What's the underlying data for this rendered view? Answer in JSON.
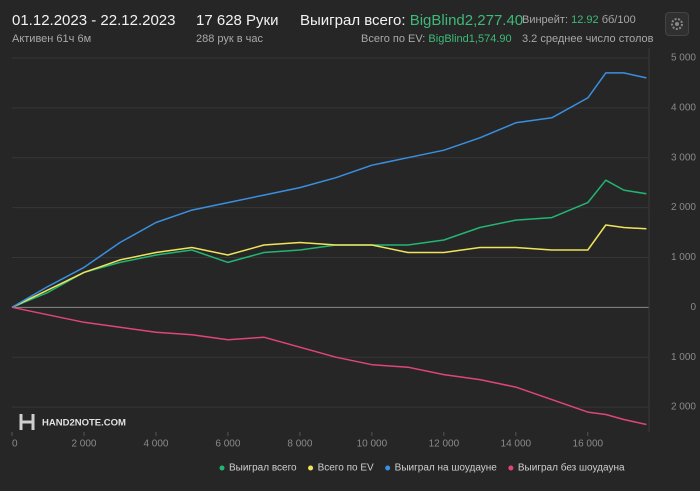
{
  "header": {
    "date_range": "01.12.2023 - 22.12.2023",
    "active": "Активен 61ч 6м",
    "hands": "17 628 Руки",
    "hands_per_hour": "288 рук в час",
    "won_label": "Выиграл всего:",
    "won_value": "BigBlind2,277.40",
    "ev_label": "Всего по EV:",
    "ev_value": "BigBlind1,574.90",
    "winrate_label": "Винрейт:",
    "winrate_value": "12.92",
    "winrate_unit": "бб/100",
    "tables": "3.2 среднее число столов"
  },
  "logo": "HAND2NOTE.COM",
  "chart_data": {
    "type": "line",
    "x": [
      0,
      1000,
      2000,
      3000,
      4000,
      5000,
      6000,
      7000,
      8000,
      9000,
      10000,
      11000,
      12000,
      13000,
      14000,
      15000,
      16000,
      16500,
      17000,
      17628
    ],
    "series": [
      {
        "name": "Выиграл всего",
        "color": "#22b573",
        "values": [
          0,
          300,
          700,
          900,
          1050,
          1150,
          900,
          1100,
          1150,
          1250,
          1250,
          1250,
          1350,
          1600,
          1750,
          1800,
          2100,
          2550,
          2350,
          2277
        ]
      },
      {
        "name": "Всего по EV",
        "color": "#f0e45c",
        "values": [
          0,
          350,
          700,
          950,
          1100,
          1200,
          1050,
          1250,
          1300,
          1250,
          1250,
          1100,
          1100,
          1200,
          1200,
          1150,
          1150,
          1650,
          1600,
          1575
        ]
      },
      {
        "name": "Выиграл на шоудауне",
        "color": "#3a8fe0",
        "values": [
          0,
          420,
          800,
          1300,
          1700,
          1950,
          2100,
          2250,
          2400,
          2600,
          2850,
          3000,
          3150,
          3400,
          3700,
          3800,
          4200,
          4700,
          4700,
          4600
        ]
      },
      {
        "name": "Выиграл без шоудауна",
        "color": "#e0457a",
        "values": [
          0,
          -150,
          -300,
          -400,
          -500,
          -550,
          -650,
          -600,
          -800,
          -1000,
          -1150,
          -1200,
          -1350,
          -1450,
          -1600,
          -1850,
          -2100,
          -2150,
          -2250,
          -2350
        ]
      }
    ],
    "xlim": [
      0,
      17700
    ],
    "ylim": [
      -2500,
      5200
    ],
    "xticks": [
      0,
      {
        "value": 2000,
        "label": "2 000"
      },
      {
        "value": 4000,
        "label": "4 000"
      },
      {
        "value": 6000,
        "label": "6 000"
      },
      {
        "value": 8000,
        "label": "8 000"
      },
      {
        "value": 10000,
        "label": "10 000"
      },
      {
        "value": 12000,
        "label": "12 000"
      },
      {
        "value": 14000,
        "label": "14 000"
      },
      {
        "value": 16000,
        "label": "16 000"
      }
    ],
    "yticks": [
      {
        "value": -2000,
        "label": "2 000"
      },
      {
        "value": -1000,
        "label": "1 000"
      },
      0,
      {
        "value": 1000,
        "label": "1 000"
      },
      {
        "value": 2000,
        "label": "2 000"
      },
      {
        "value": 3000,
        "label": "3 000"
      },
      {
        "value": 4000,
        "label": "4 000"
      },
      {
        "value": 5000,
        "label": "5 000"
      }
    ],
    "grid": true
  }
}
